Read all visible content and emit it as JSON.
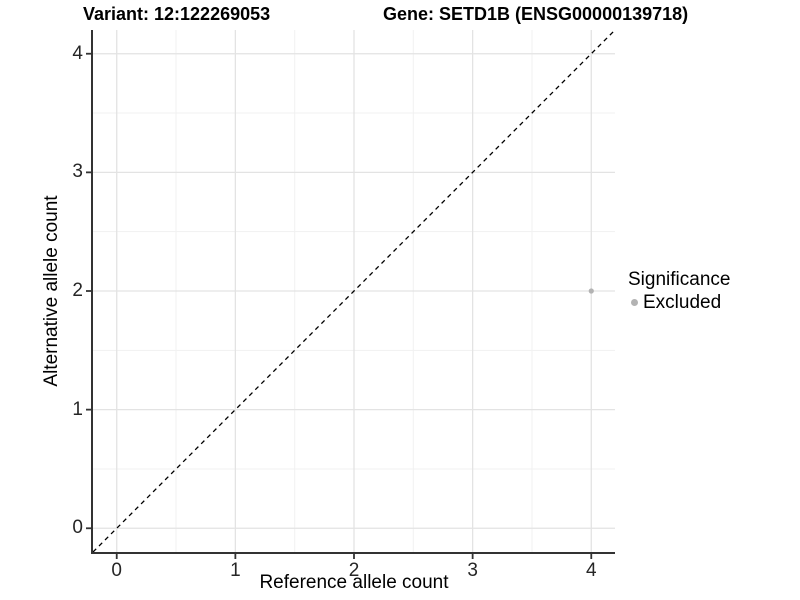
{
  "chart_data": {
    "type": "scatter",
    "title_left": "Variant: 12:122269053",
    "title_right": "Gene: SETD1B (ENSG00000139718)",
    "xlabel": "Reference allele count",
    "ylabel": "Alternative allele count",
    "xlim": [
      -0.2,
      4.2
    ],
    "ylim": [
      -0.2,
      4.2
    ],
    "x_ticks": [
      0,
      1,
      2,
      3,
      4
    ],
    "y_ticks": [
      0,
      1,
      2,
      3,
      4
    ],
    "grid": {
      "major": true,
      "minor": true,
      "major_color": "#e3e3e3",
      "minor_color": "#f1f1f1"
    },
    "identity_line": {
      "style": "dashed",
      "color": "#000000",
      "from": [
        -0.2,
        -0.2
      ],
      "to": [
        4.2,
        4.2
      ]
    },
    "series": [
      {
        "name": "Excluded",
        "color": "#b3b3b3",
        "points": [
          [
            4,
            2
          ]
        ]
      }
    ],
    "legend": {
      "title": "Significance",
      "position": "right",
      "entries": [
        {
          "label": "Excluded",
          "color": "#b3b3b3"
        }
      ]
    },
    "colors": {
      "axis_line": "#333333",
      "tick_text": "#262626"
    }
  }
}
